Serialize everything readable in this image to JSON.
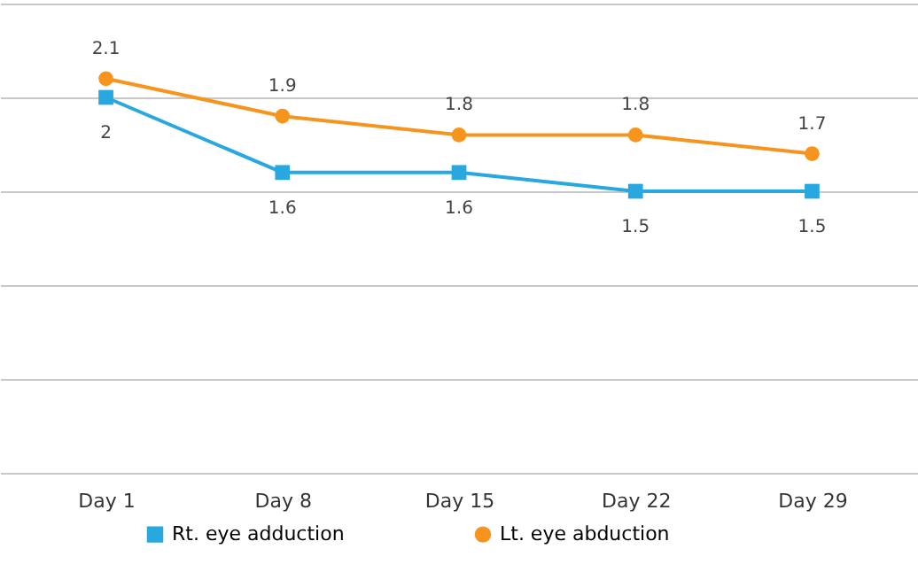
{
  "chart_data": {
    "type": "line",
    "categories": [
      "Day 1",
      "Day 8",
      "Day 15",
      "Day 22",
      "Day 29"
    ],
    "series": [
      {
        "name": "Rt. eye adduction",
        "color": "#29a8e0",
        "marker": "square",
        "values": [
          2,
          1.6,
          1.6,
          1.5,
          1.5
        ]
      },
      {
        "name": "Lt. eye abduction",
        "color": "#f7941d",
        "marker": "circle",
        "values": [
          2.1,
          1.9,
          1.8,
          1.8,
          1.7
        ]
      }
    ],
    "ylim": [
      0,
      2.5
    ],
    "yticks": [
      0,
      0.5,
      1,
      1.5,
      2,
      2.5
    ],
    "grid": "y",
    "tick_labels": "x",
    "legend": "bottom",
    "data_labels": true
  }
}
